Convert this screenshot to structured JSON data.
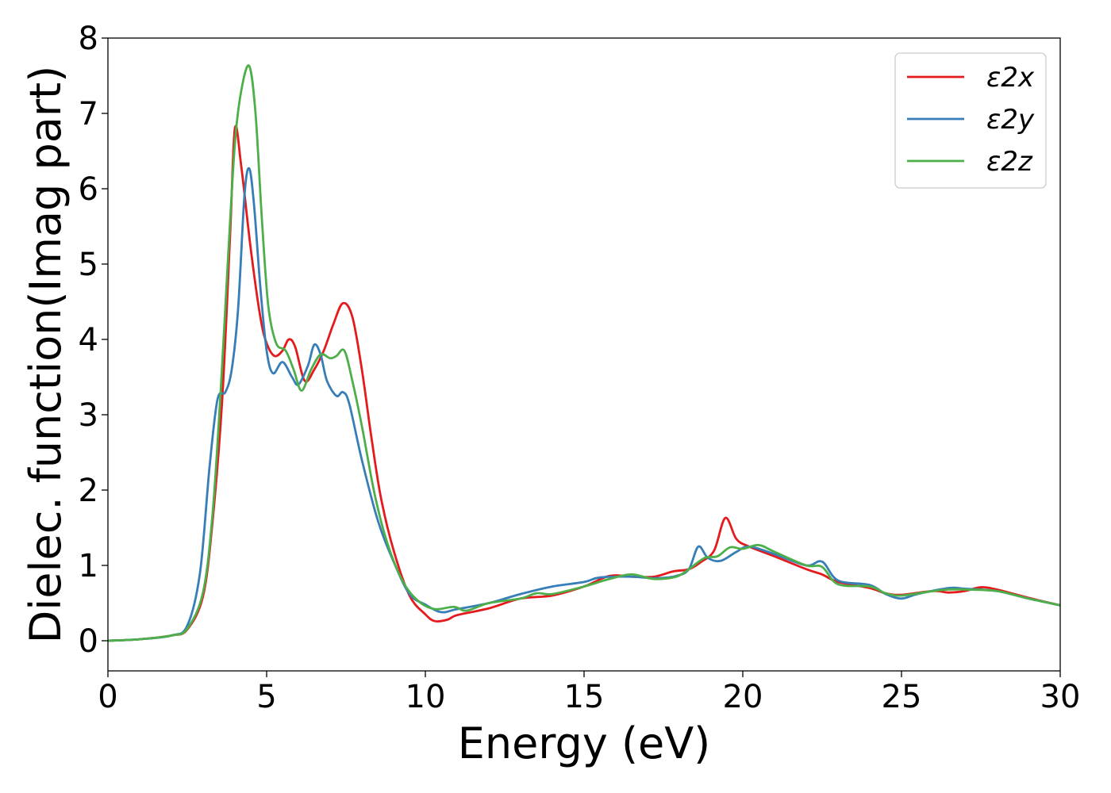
{
  "chart_data": {
    "type": "line",
    "title": "",
    "xlabel": "Energy (eV)",
    "ylabel": "Dielec. function(Imag part)",
    "xlim": [
      0,
      30
    ],
    "ylim": [
      -0.4,
      8.0
    ],
    "xticks": [
      0,
      5,
      10,
      15,
      20,
      25,
      30
    ],
    "yticks": [
      0,
      1,
      2,
      3,
      4,
      5,
      6,
      7,
      8
    ],
    "grid": false,
    "legend_position": "top-right",
    "series": [
      {
        "name": "ε2x",
        "color": "#e41a1c",
        "points": [
          [
            0,
            0.0
          ],
          [
            1,
            0.02
          ],
          [
            2,
            0.07
          ],
          [
            2.5,
            0.15
          ],
          [
            3.0,
            0.6
          ],
          [
            3.3,
            1.6
          ],
          [
            3.6,
            3.2
          ],
          [
            3.85,
            5.4
          ],
          [
            4.0,
            6.8
          ],
          [
            4.2,
            6.3
          ],
          [
            4.5,
            5.2
          ],
          [
            4.8,
            4.3
          ],
          [
            5.0,
            3.95
          ],
          [
            5.25,
            3.78
          ],
          [
            5.5,
            3.85
          ],
          [
            5.7,
            4.0
          ],
          [
            5.9,
            3.9
          ],
          [
            6.2,
            3.45
          ],
          [
            6.5,
            3.6
          ],
          [
            6.8,
            3.85
          ],
          [
            7.1,
            4.2
          ],
          [
            7.4,
            4.48
          ],
          [
            7.7,
            4.3
          ],
          [
            8.0,
            3.6
          ],
          [
            8.3,
            2.7
          ],
          [
            8.6,
            1.9
          ],
          [
            9.0,
            1.2
          ],
          [
            9.5,
            0.6
          ],
          [
            10.0,
            0.35
          ],
          [
            10.3,
            0.26
          ],
          [
            10.7,
            0.28
          ],
          [
            11.0,
            0.34
          ],
          [
            12.0,
            0.43
          ],
          [
            13.0,
            0.56
          ],
          [
            14.0,
            0.6
          ],
          [
            15.0,
            0.72
          ],
          [
            15.8,
            0.86
          ],
          [
            16.5,
            0.85
          ],
          [
            17.2,
            0.85
          ],
          [
            17.8,
            0.92
          ],
          [
            18.3,
            0.95
          ],
          [
            18.7,
            1.05
          ],
          [
            19.1,
            1.2
          ],
          [
            19.45,
            1.63
          ],
          [
            19.8,
            1.35
          ],
          [
            20.2,
            1.25
          ],
          [
            21.0,
            1.12
          ],
          [
            22.0,
            0.95
          ],
          [
            22.5,
            0.88
          ],
          [
            23.0,
            0.78
          ],
          [
            24.0,
            0.7
          ],
          [
            24.5,
            0.63
          ],
          [
            25.0,
            0.61
          ],
          [
            26.0,
            0.66
          ],
          [
            26.5,
            0.64
          ],
          [
            27.0,
            0.66
          ],
          [
            27.5,
            0.71
          ],
          [
            28.0,
            0.68
          ],
          [
            29.0,
            0.57
          ],
          [
            30.0,
            0.47
          ]
        ]
      },
      {
        "name": "ε2y",
        "color": "#377eb8",
        "points": [
          [
            0,
            0.0
          ],
          [
            1,
            0.02
          ],
          [
            2,
            0.07
          ],
          [
            2.5,
            0.2
          ],
          [
            2.9,
            0.9
          ],
          [
            3.2,
            2.3
          ],
          [
            3.45,
            3.2
          ],
          [
            3.7,
            3.3
          ],
          [
            3.9,
            3.6
          ],
          [
            4.1,
            4.4
          ],
          [
            4.3,
            5.9
          ],
          [
            4.45,
            6.27
          ],
          [
            4.6,
            5.8
          ],
          [
            4.8,
            4.7
          ],
          [
            5.0,
            3.85
          ],
          [
            5.2,
            3.55
          ],
          [
            5.5,
            3.7
          ],
          [
            5.8,
            3.5
          ],
          [
            6.0,
            3.4
          ],
          [
            6.3,
            3.65
          ],
          [
            6.5,
            3.93
          ],
          [
            6.7,
            3.8
          ],
          [
            6.9,
            3.45
          ],
          [
            7.2,
            3.25
          ],
          [
            7.4,
            3.3
          ],
          [
            7.6,
            3.15
          ],
          [
            8.0,
            2.4
          ],
          [
            8.5,
            1.6
          ],
          [
            9.0,
            1.05
          ],
          [
            9.5,
            0.62
          ],
          [
            10.0,
            0.48
          ],
          [
            10.5,
            0.38
          ],
          [
            11.0,
            0.42
          ],
          [
            12.0,
            0.5
          ],
          [
            13.0,
            0.62
          ],
          [
            14.0,
            0.72
          ],
          [
            15.0,
            0.78
          ],
          [
            15.5,
            0.84
          ],
          [
            16.5,
            0.85
          ],
          [
            17.2,
            0.83
          ],
          [
            17.9,
            0.86
          ],
          [
            18.3,
            0.95
          ],
          [
            18.6,
            1.25
          ],
          [
            18.9,
            1.1
          ],
          [
            19.3,
            1.06
          ],
          [
            19.8,
            1.18
          ],
          [
            20.2,
            1.25
          ],
          [
            21.0,
            1.15
          ],
          [
            22.0,
            1.0
          ],
          [
            22.5,
            1.05
          ],
          [
            23.0,
            0.8
          ],
          [
            24.0,
            0.74
          ],
          [
            24.5,
            0.62
          ],
          [
            25.0,
            0.56
          ],
          [
            25.5,
            0.62
          ],
          [
            26.5,
            0.7
          ],
          [
            27.0,
            0.69
          ],
          [
            28.0,
            0.66
          ],
          [
            29.0,
            0.56
          ],
          [
            30.0,
            0.47
          ]
        ]
      },
      {
        "name": "ε2z",
        "color": "#4daf4a",
        "points": [
          [
            0,
            0.0
          ],
          [
            1,
            0.02
          ],
          [
            2,
            0.07
          ],
          [
            2.5,
            0.16
          ],
          [
            3.0,
            0.65
          ],
          [
            3.3,
            1.7
          ],
          [
            3.55,
            3.3
          ],
          [
            3.8,
            5.2
          ],
          [
            4.0,
            6.6
          ],
          [
            4.2,
            7.3
          ],
          [
            4.45,
            7.63
          ],
          [
            4.65,
            7.0
          ],
          [
            4.85,
            5.6
          ],
          [
            5.05,
            4.45
          ],
          [
            5.3,
            3.95
          ],
          [
            5.6,
            3.85
          ],
          [
            5.85,
            3.6
          ],
          [
            6.1,
            3.32
          ],
          [
            6.4,
            3.6
          ],
          [
            6.7,
            3.8
          ],
          [
            7.0,
            3.75
          ],
          [
            7.2,
            3.78
          ],
          [
            7.45,
            3.85
          ],
          [
            7.7,
            3.45
          ],
          [
            8.0,
            2.85
          ],
          [
            8.4,
            1.95
          ],
          [
            8.8,
            1.3
          ],
          [
            9.3,
            0.78
          ],
          [
            9.8,
            0.52
          ],
          [
            10.3,
            0.42
          ],
          [
            10.9,
            0.45
          ],
          [
            11.3,
            0.4
          ],
          [
            12.0,
            0.5
          ],
          [
            13.0,
            0.56
          ],
          [
            13.5,
            0.63
          ],
          [
            14.0,
            0.62
          ],
          [
            15.0,
            0.72
          ],
          [
            15.8,
            0.82
          ],
          [
            16.5,
            0.88
          ],
          [
            17.2,
            0.82
          ],
          [
            17.9,
            0.85
          ],
          [
            18.3,
            0.95
          ],
          [
            18.8,
            1.1
          ],
          [
            19.2,
            1.12
          ],
          [
            19.6,
            1.24
          ],
          [
            20.0,
            1.22
          ],
          [
            20.5,
            1.27
          ],
          [
            21.0,
            1.18
          ],
          [
            22.0,
            1.0
          ],
          [
            22.5,
            0.98
          ],
          [
            23.0,
            0.75
          ],
          [
            24.0,
            0.72
          ],
          [
            24.5,
            0.63
          ],
          [
            25.0,
            0.6
          ],
          [
            26.0,
            0.66
          ],
          [
            26.5,
            0.68
          ],
          [
            27.0,
            0.68
          ],
          [
            28.0,
            0.66
          ],
          [
            29.0,
            0.56
          ],
          [
            30.0,
            0.47
          ]
        ]
      }
    ]
  }
}
